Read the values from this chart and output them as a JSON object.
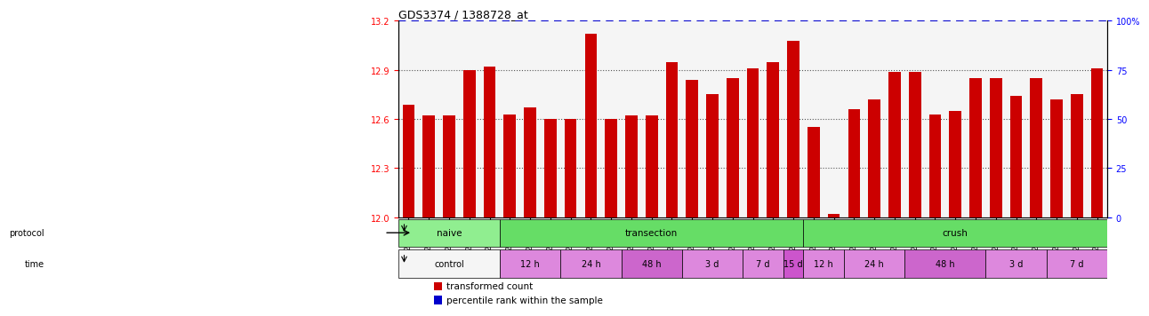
{
  "title": "GDS3374 / 1388728_at",
  "categories": [
    "GSM250998",
    "GSM250999",
    "GSM251000",
    "GSM251001",
    "GSM251002",
    "GSM251003",
    "GSM251004",
    "GSM251005",
    "GSM251006",
    "GSM251007",
    "GSM251008",
    "GSM251009",
    "GSM251010",
    "GSM251011",
    "GSM251012",
    "GSM251013",
    "GSM251014",
    "GSM251015",
    "GSM251016",
    "GSM251017",
    "GSM251018",
    "GSM251019",
    "GSM251020",
    "GSM251021",
    "GSM251022",
    "GSM251023",
    "GSM251024",
    "GSM251025",
    "GSM251026",
    "GSM251027",
    "GSM251028",
    "GSM251029",
    "GSM251030",
    "GSM251031",
    "GSM251032"
  ],
  "bar_values": [
    12.69,
    12.62,
    12.62,
    12.9,
    12.92,
    12.63,
    12.67,
    12.6,
    12.6,
    13.12,
    12.6,
    12.62,
    12.62,
    12.95,
    12.84,
    12.75,
    12.85,
    12.91,
    12.95,
    13.08,
    12.55,
    12.02,
    12.66,
    12.72,
    12.89,
    12.89,
    12.63,
    12.65,
    12.85,
    12.85,
    12.74,
    12.85,
    12.72,
    12.75,
    12.91
  ],
  "bar_color": "#cc0000",
  "percentile_color": "#0000cc",
  "ylim_left": [
    12.0,
    13.2
  ],
  "ylim_right": [
    0,
    100
  ],
  "yticks_left": [
    12.0,
    12.3,
    12.6,
    12.9,
    13.2
  ],
  "yticks_right": [
    0,
    25,
    50,
    75,
    100
  ],
  "ytick_labels_right": [
    "0",
    "25",
    "50",
    "75",
    "100%"
  ],
  "background_color": "#ffffff",
  "plot_bg_color": "#f0f0f0",
  "protocol_groups": [
    {
      "label": "naive",
      "start": 0,
      "end": 5,
      "color": "#90ee90"
    },
    {
      "label": "transection",
      "start": 5,
      "end": 20,
      "color": "#55dd55"
    },
    {
      "label": "crush",
      "start": 20,
      "end": 35,
      "color": "#55dd55"
    }
  ],
  "time_groups": [
    {
      "label": "control",
      "start": 0,
      "end": 5,
      "color": "#f0f0f0"
    },
    {
      "label": "12 h",
      "start": 5,
      "end": 8,
      "color": "#dd88dd"
    },
    {
      "label": "24 h",
      "start": 8,
      "end": 11,
      "color": "#dd88dd"
    },
    {
      "label": "48 h",
      "start": 11,
      "end": 14,
      "color": "#dd88dd"
    },
    {
      "label": "3 d",
      "start": 14,
      "end": 17,
      "color": "#dd88dd"
    },
    {
      "label": "7 d",
      "start": 17,
      "end": 19,
      "color": "#dd88dd"
    },
    {
      "label": "15 d",
      "start": 19,
      "end": 20,
      "color": "#cc55cc"
    },
    {
      "label": "12 h",
      "start": 20,
      "end": 22,
      "color": "#dd88dd"
    },
    {
      "label": "24 h",
      "start": 22,
      "end": 25,
      "color": "#dd88dd"
    },
    {
      "label": "48 h",
      "start": 25,
      "end": 29,
      "color": "#dd88dd"
    },
    {
      "label": "3 d",
      "start": 29,
      "end": 32,
      "color": "#dd88dd"
    },
    {
      "label": "7 d",
      "start": 32,
      "end": 35,
      "color": "#dd88dd"
    }
  ],
  "legend_items": [
    {
      "label": "transformed count",
      "color": "#cc0000"
    },
    {
      "label": "percentile rank within the sample",
      "color": "#0000cc"
    }
  ],
  "dotted_line_color": "#555555",
  "grid_color": "#aaaaaa"
}
